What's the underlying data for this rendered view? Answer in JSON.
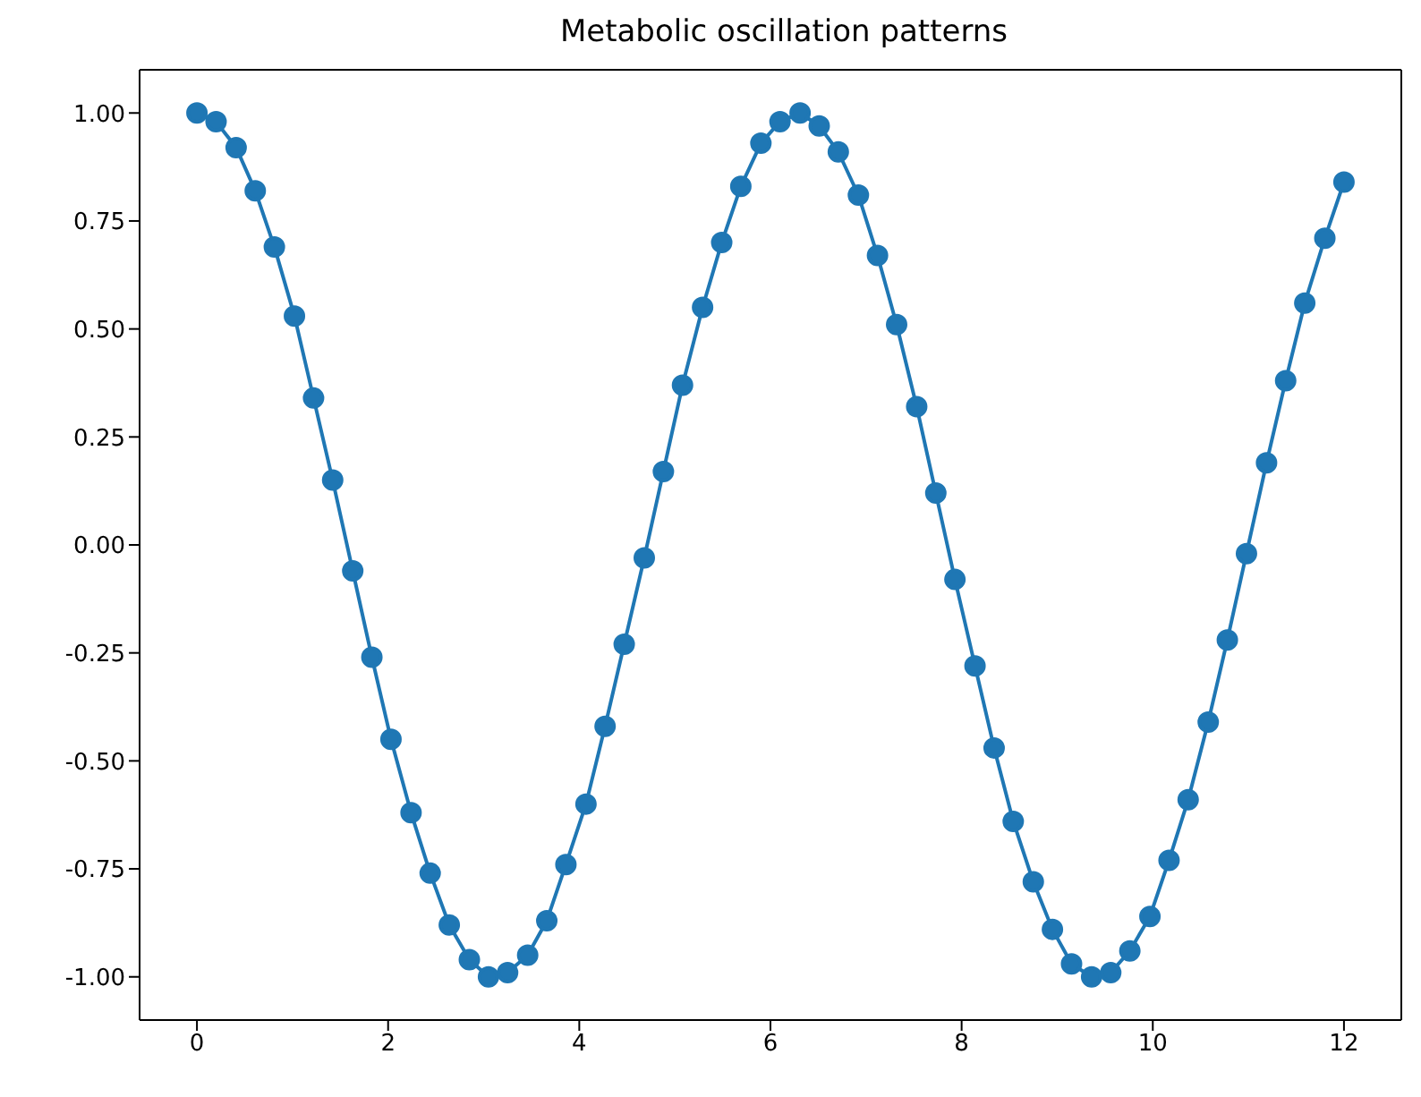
{
  "chart_data": {
    "type": "line",
    "title": "Metabolic oscillation patterns",
    "x": [
      0,
      0.2,
      0.41,
      0.61,
      0.81,
      1.02,
      1.22,
      1.42,
      1.63,
      1.83,
      2.03,
      2.24,
      2.44,
      2.64,
      2.85,
      3.05,
      3.25,
      3.46,
      3.66,
      3.86,
      4.07,
      4.27,
      4.47,
      4.68,
      4.88,
      5.08,
      5.29,
      5.49,
      5.69,
      5.9,
      6.1,
      6.31,
      6.51,
      6.71,
      6.92,
      7.12,
      7.32,
      7.53,
      7.73,
      7.93,
      8.14,
      8.34,
      8.54,
      8.75,
      8.95,
      9.15,
      9.36,
      9.56,
      9.76,
      9.97,
      10.17,
      10.37,
      10.58,
      10.78,
      10.98,
      11.19,
      11.39,
      11.59,
      11.8,
      12
    ],
    "series": [
      {
        "color": "#1f77b4",
        "values": [
          1.0,
          0.98,
          0.92,
          0.82,
          0.69,
          0.53,
          0.34,
          0.15,
          -0.06,
          -0.26,
          -0.45,
          -0.62,
          -0.76,
          -0.88,
          -0.96,
          -1.0,
          -0.99,
          -0.95,
          -0.87,
          -0.74,
          -0.6,
          -0.42,
          -0.23,
          -0.03,
          0.17,
          0.37,
          0.55,
          0.7,
          0.83,
          0.93,
          0.98,
          1.0,
          0.97,
          0.91,
          0.81,
          0.67,
          0.51,
          0.32,
          0.12,
          -0.08,
          -0.28,
          -0.47,
          -0.64,
          -0.78,
          -0.89,
          -0.97,
          -1.0,
          -0.99,
          -0.94,
          -0.86,
          -0.73,
          -0.59,
          -0.41,
          -0.22,
          -0.02,
          0.19,
          0.38,
          0.56,
          0.71,
          0.84
        ]
      }
    ],
    "xlim": [
      -0.6,
      12.6
    ],
    "xticks": [
      0,
      2,
      4,
      6,
      8,
      10,
      12
    ],
    "ylim": [
      -1.1,
      1.1
    ],
    "yticks": [
      {
        "value": -1,
        "label": "-1.00"
      },
      {
        "value": -0.75,
        "label": "-0.75"
      },
      {
        "value": -0.5,
        "label": "-0.50"
      },
      {
        "value": -0.25,
        "label": "-0.25"
      },
      {
        "value": 0,
        "label": "0.00"
      },
      {
        "value": 0.25,
        "label": "0.25"
      },
      {
        "value": 0.5,
        "label": "0.50"
      },
      {
        "value": 0.75,
        "label": "0.75"
      },
      {
        "value": 1,
        "label": "1.00"
      }
    ],
    "marker": "circle",
    "line_style": "solid",
    "grid": false,
    "legend": false
  }
}
